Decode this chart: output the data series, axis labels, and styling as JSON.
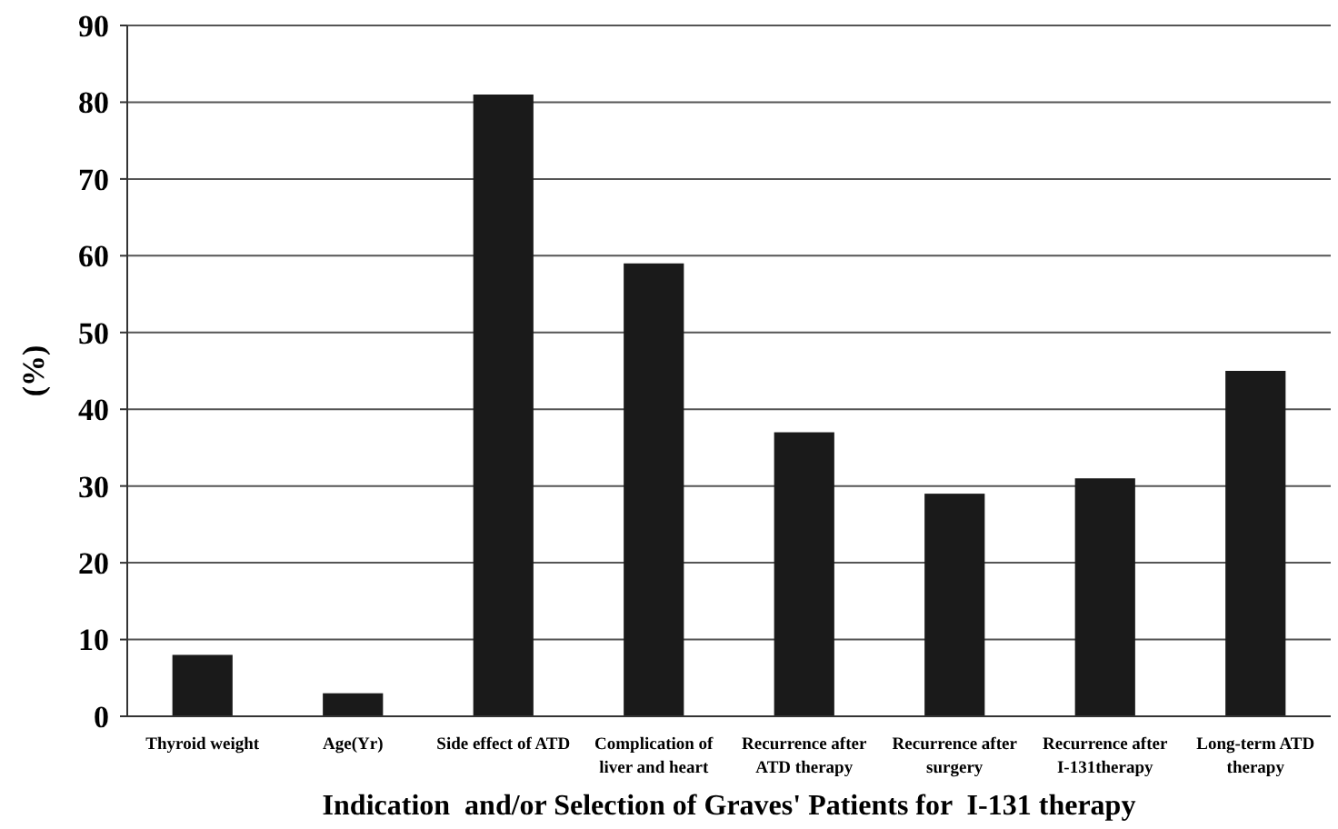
{
  "chart_data": {
    "type": "bar",
    "xlabel": "Indication  and/or Selection of Graves' Patients for  I-131 therapy",
    "ylabel": "(%)",
    "categories": [
      "Thyroid weight",
      "Age(Yr)",
      "Side effect of ATD",
      "Complication of liver and heart",
      "Recurrence after ATD therapy",
      "Recurrence after surgery",
      "Recurrence after I-131therapy",
      "Long-term ATD therapy"
    ],
    "values": [
      8,
      3,
      81,
      59,
      37,
      29,
      31,
      45
    ],
    "color": "#1a1a1a",
    "ylim": [
      0,
      90
    ],
    "yticks": [
      0,
      10,
      20,
      30,
      40,
      50,
      60,
      70,
      80,
      90
    ],
    "grid": "y"
  }
}
